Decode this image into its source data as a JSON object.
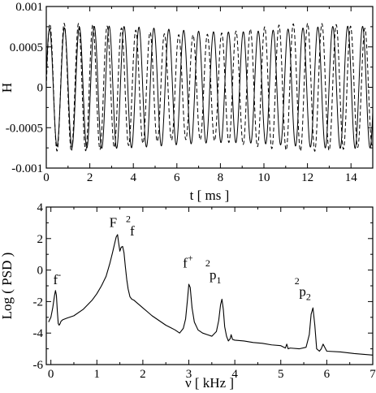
{
  "chart_data": [
    {
      "type": "line",
      "title": "",
      "xlabel": "t  [ ms ]",
      "ylabel": "H",
      "xlim": [
        0,
        15
      ],
      "ylim": [
        -0.001,
        0.001
      ],
      "xticks": [
        0,
        2,
        4,
        6,
        8,
        10,
        12,
        14
      ],
      "xtick_labels": [
        "0",
        "2",
        "4",
        "6",
        "8",
        "10",
        "12",
        "14"
      ],
      "yticks": [
        -0.001,
        -0.0005,
        0,
        0.0005,
        0.001
      ],
      "ytick_labels": [
        "-0.001",
        "-0.0005",
        "0",
        "0.0005",
        "0.001"
      ],
      "grid": false,
      "series": [
        {
          "style": "solid",
          "frequency_khz": 1.46,
          "amplitude": 0.00072,
          "modulation": 0.05,
          "phase": 0.2
        },
        {
          "style": "dashed",
          "frequency_khz": 1.52,
          "amplitude": 0.00072,
          "modulation": 0.1,
          "phase": 0.0
        }
      ]
    },
    {
      "type": "line",
      "title": "",
      "xlabel": "ν  [ kHz ]",
      "ylabel": "Log ( PSD )",
      "xlim": [
        -0.1,
        7
      ],
      "ylim": [
        -6,
        4
      ],
      "xticks": [
        0,
        1,
        2,
        3,
        4,
        5,
        6,
        7
      ],
      "xtick_labels": [
        "0",
        "1",
        "2",
        "3",
        "4",
        "5",
        "6",
        "7"
      ],
      "yticks": [
        -6,
        -4,
        -2,
        0,
        2,
        4
      ],
      "ytick_labels": [
        "-6",
        "-4",
        "-2",
        "0",
        "2",
        "4"
      ],
      "grid": false,
      "series": [
        {
          "style": "solid",
          "x": [
            -0.05,
            0.0,
            0.04,
            0.08,
            0.1,
            0.12,
            0.14,
            0.16,
            0.18,
            0.2,
            0.22,
            0.26,
            0.35,
            0.5,
            0.7,
            0.9,
            1.0,
            1.1,
            1.2,
            1.28,
            1.34,
            1.38,
            1.42,
            1.45,
            1.47,
            1.5,
            1.53,
            1.56,
            1.59,
            1.62,
            1.65,
            1.68,
            1.72,
            1.76,
            1.8,
            1.9,
            2.0,
            2.1,
            2.2,
            2.3,
            2.4,
            2.5,
            2.6,
            2.7,
            2.8,
            2.88,
            2.93,
            2.97,
            3.0,
            3.03,
            3.07,
            3.12,
            3.2,
            3.3,
            3.4,
            3.5,
            3.6,
            3.65,
            3.69,
            3.72,
            3.75,
            3.78,
            3.82,
            3.86,
            3.9,
            3.92,
            3.95,
            4.0,
            4.2,
            4.4,
            4.6,
            4.8,
            5.0,
            5.1,
            5.13,
            5.16,
            5.2,
            5.4,
            5.55,
            5.62,
            5.66,
            5.7,
            5.74,
            5.78,
            5.84,
            5.88,
            5.92,
            6.0,
            6.3,
            6.6,
            7.0
          ],
          "y": [
            -3.3,
            -3.0,
            -2.4,
            -1.6,
            -1.3,
            -1.6,
            -2.6,
            -3.4,
            -3.5,
            -3.4,
            -3.25,
            -3.15,
            -3.05,
            -2.9,
            -2.5,
            -1.9,
            -1.5,
            -1.0,
            -0.4,
            0.4,
            1.1,
            1.6,
            2.1,
            2.25,
            1.8,
            1.2,
            1.45,
            1.5,
            1.1,
            0.2,
            -0.6,
            -1.2,
            -1.7,
            -1.85,
            -1.9,
            -2.15,
            -2.4,
            -2.65,
            -2.9,
            -3.1,
            -3.3,
            -3.5,
            -3.65,
            -3.8,
            -4.0,
            -3.7,
            -3.1,
            -1.9,
            -0.9,
            -1.1,
            -2.4,
            -3.3,
            -3.8,
            -4.0,
            -4.1,
            -4.2,
            -3.9,
            -3.2,
            -2.2,
            -1.85,
            -2.5,
            -3.6,
            -4.2,
            -4.5,
            -4.35,
            -4.1,
            -4.4,
            -4.45,
            -4.5,
            -4.6,
            -4.65,
            -4.75,
            -4.8,
            -4.95,
            -4.7,
            -5.0,
            -4.95,
            -5.0,
            -4.9,
            -4.1,
            -2.8,
            -2.4,
            -3.5,
            -5.0,
            -5.15,
            -5.0,
            -4.7,
            -5.15,
            -5.2,
            -5.3,
            -5.4
          ]
        }
      ],
      "annotations": [
        {
          "base": "f",
          "sup": "-",
          "sub": "",
          "x": 0.05,
          "y": -0.9
        },
        {
          "base": "F",
          "sup": "",
          "sub": "",
          "x": 1.27,
          "y": 2.75
        },
        {
          "base": "",
          "sup": "2",
          "sub": "",
          "x": 1.63,
          "y": 3.05
        },
        {
          "base": "f",
          "sup": "",
          "sub": "",
          "x": 1.72,
          "y": 2.2
        },
        {
          "base": "f",
          "sup": "+",
          "sub": "",
          "x": 2.87,
          "y": 0.15
        },
        {
          "base": "",
          "sup": "2",
          "sub": "",
          "x": 3.36,
          "y": 0.25
        },
        {
          "base": "p",
          "sup": "",
          "sub": "1",
          "x": 3.45,
          "y": -0.6
        },
        {
          "base": "",
          "sup": "2",
          "sub": "",
          "x": 5.3,
          "y": -0.9
        },
        {
          "base": "p",
          "sup": "",
          "sub": "2",
          "x": 5.4,
          "y": -1.65
        }
      ]
    }
  ]
}
